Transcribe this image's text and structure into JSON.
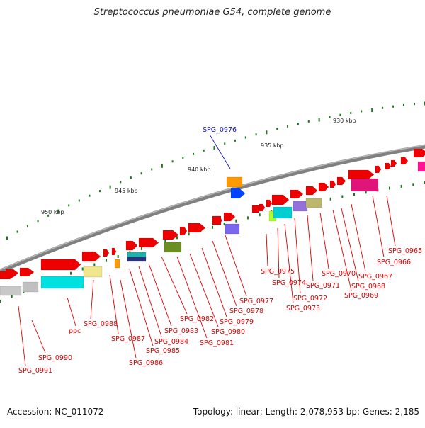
{
  "title": "Streptococcus pneumoniae G54, complete genome",
  "footer": {
    "accession": "Accession: NC_011072",
    "topology": "Topology: linear; Length: 2,078,953 bp; Genes: 2,185"
  },
  "scale": {
    "ticks": [
      {
        "label": "950 kbp"
      },
      {
        "label": "945 kbp"
      },
      {
        "label": "940 kbp"
      },
      {
        "label": "935 kbp"
      },
      {
        "label": "930 kbp"
      }
    ]
  },
  "colors": {
    "backbone": "#808080",
    "gene_red": "#ee0000",
    "highlight_label": "#1010cc",
    "label_red": "#dd0000",
    "tick_green": "#1a7a1a"
  },
  "labels": [
    {
      "name": "SPG_0991"
    },
    {
      "name": "SPG_0990"
    },
    {
      "name": "ppc"
    },
    {
      "name": "SPG_0988"
    },
    {
      "name": "SPG_0987"
    },
    {
      "name": "SPG_0986"
    },
    {
      "name": "SPG_0985"
    },
    {
      "name": "SPG_0984"
    },
    {
      "name": "SPG_0983"
    },
    {
      "name": "SPG_0982"
    },
    {
      "name": "SPG_0981"
    },
    {
      "name": "SPG_0980"
    },
    {
      "name": "SPG_0979"
    },
    {
      "name": "SPG_0978"
    },
    {
      "name": "SPG_0977"
    },
    {
      "name": "SPG_0976",
      "highlight": true
    },
    {
      "name": "SPG_0975"
    },
    {
      "name": "SPG_0974"
    },
    {
      "name": "SPG_0973"
    },
    {
      "name": "SPG_0972"
    },
    {
      "name": "SPG_0971"
    },
    {
      "name": "SPG_0970"
    },
    {
      "name": "SPG_0969"
    },
    {
      "name": "SPG_0968"
    },
    {
      "name": "SPG_0967"
    },
    {
      "name": "SPG_0966"
    },
    {
      "name": "SPG_0965"
    }
  ]
}
